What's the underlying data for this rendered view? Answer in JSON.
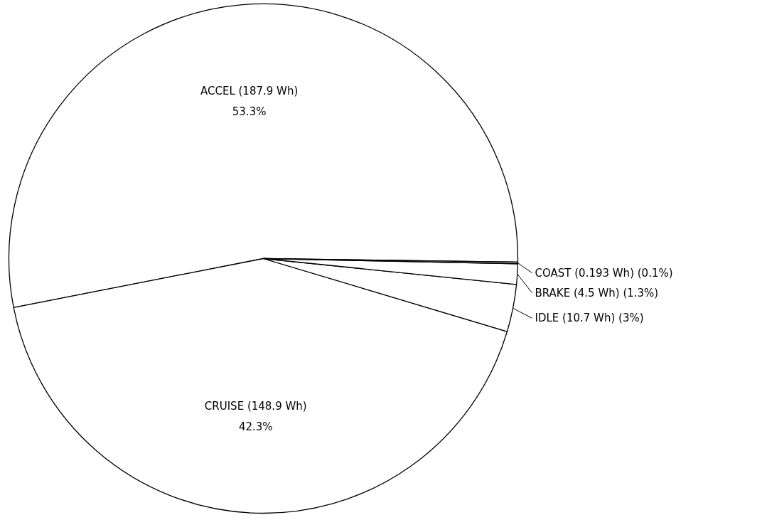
{
  "chart_data": {
    "type": "pie",
    "categories": [
      "ACCEL (187.9 Wh)",
      "CRUISE (148.9 Wh)",
      "IDLE (10.7 Wh)",
      "BRAKE (4.5 Wh)",
      "COAST (0.193 Wh)"
    ],
    "values": [
      53.3,
      42.3,
      3,
      1.3,
      0.1
    ],
    "value_labels": [
      "53.3%",
      "42.3%",
      "(3%)",
      "(1.3%)",
      "(0.1%)"
    ],
    "colors": [
      "#ffffff",
      "#ffffff",
      "#ffffff",
      "#ffffff",
      "#ffffff"
    ]
  }
}
